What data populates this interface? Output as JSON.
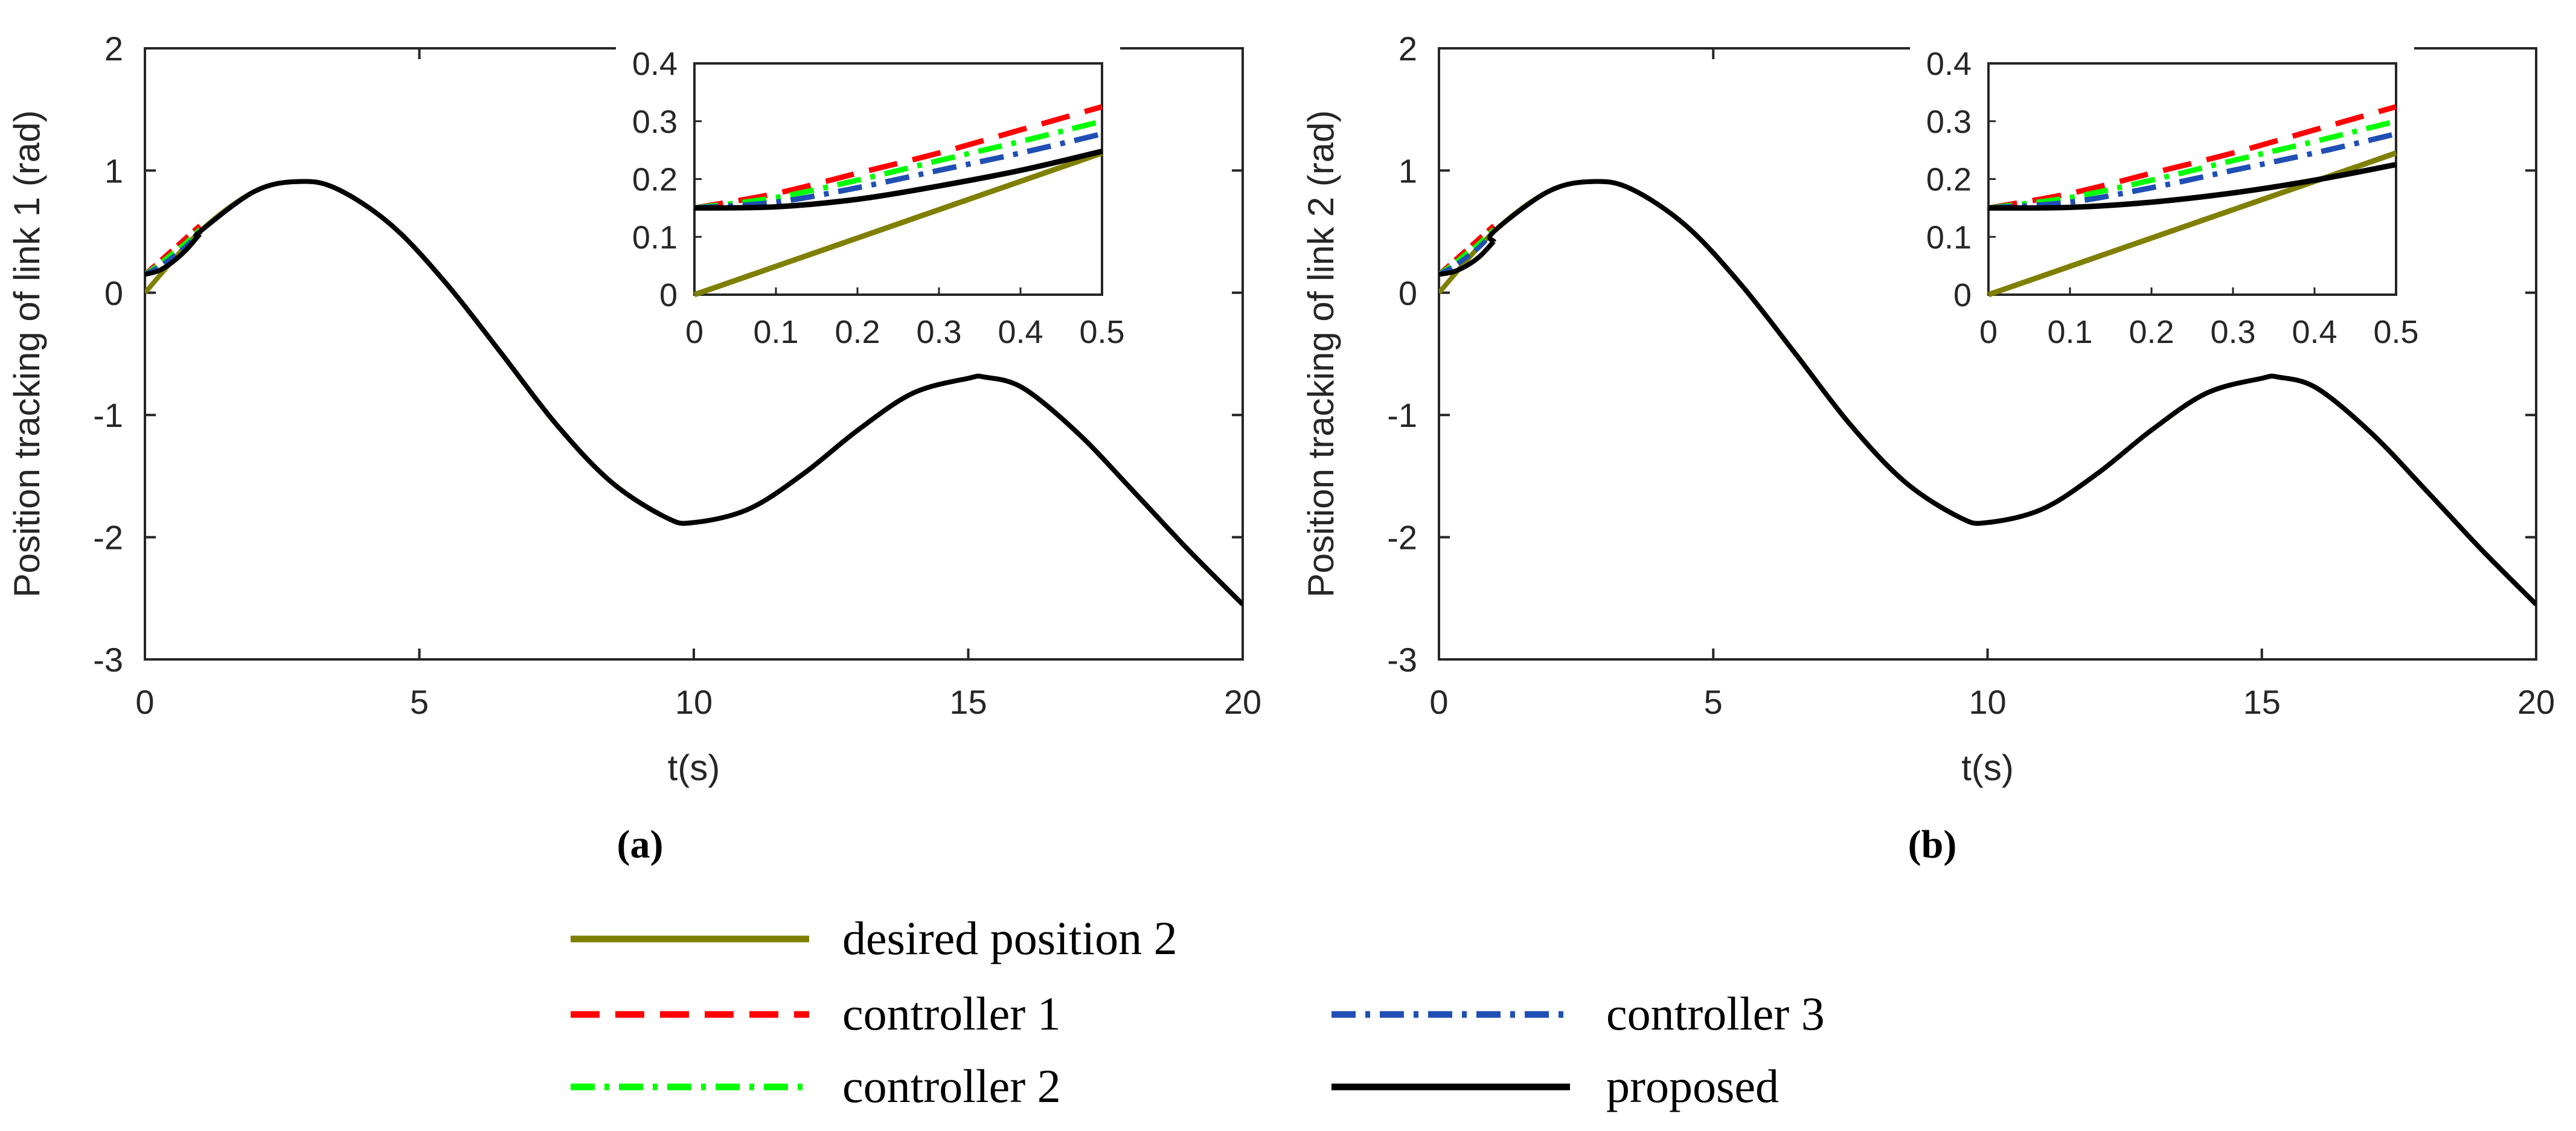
{
  "chart_data": [
    {
      "type": "line",
      "caption": "(a)",
      "xlabel": "t(s)",
      "ylabel": "Position tracking of link 1 (rad)",
      "xlim": [
        0,
        20
      ],
      "ylim": [
        -3,
        2
      ],
      "xticks": [
        "0",
        "5",
        "10",
        "15",
        "20"
      ],
      "yticks": [
        "-3",
        "-2",
        "-1",
        "0",
        "1",
        "2"
      ],
      "desired_trajectory": {
        "x": [
          0,
          1,
          2,
          2.8,
          3.5,
          4.5,
          5.5,
          6.5,
          7.5,
          8.5,
          9.5,
          10,
          11,
          12,
          13,
          14,
          15,
          15.3,
          16,
          17,
          18,
          19,
          20
        ],
        "y": [
          0,
          0.5,
          0.83,
          0.91,
          0.85,
          0.55,
          0.07,
          -0.5,
          -1.08,
          -1.55,
          -1.84,
          -1.88,
          -1.77,
          -1.48,
          -1.12,
          -0.82,
          -0.7,
          -0.69,
          -0.78,
          -1.15,
          -1.62,
          -2.1,
          -2.55
        ]
      },
      "initial_transient": {
        "x": [
          0,
          0.25,
          0.5,
          0.75,
          1.0
        ],
        "controller 1": [
          0.15,
          0.25,
          0.35,
          0.45,
          0.55
        ],
        "controller 2": [
          0.15,
          0.23,
          0.32,
          0.41,
          0.52
        ],
        "controller 3": [
          0.15,
          0.21,
          0.29,
          0.38,
          0.5
        ],
        "proposed": [
          0.15,
          0.18,
          0.25,
          0.35,
          0.48
        ]
      },
      "inset": {
        "xlim": [
          0,
          0.5
        ],
        "ylim": [
          0,
          0.4
        ],
        "xticks": [
          "0",
          "0.1",
          "0.2",
          "0.3",
          "0.4",
          "0.5"
        ],
        "yticks": [
          "0",
          "0.1",
          "0.2",
          "0.3",
          "0.4"
        ],
        "series": [
          {
            "name": "desired position 2",
            "x": [
              0,
              0.5
            ],
            "y": [
              0,
              0.245
            ]
          },
          {
            "name": "controller 1",
            "x": [
              0,
              0.1,
              0.2,
              0.3,
              0.4,
              0.5
            ],
            "y": [
              0.15,
              0.175,
              0.21,
              0.245,
              0.285,
              0.325
            ]
          },
          {
            "name": "controller 2",
            "x": [
              0,
              0.1,
              0.2,
              0.3,
              0.4,
              0.5
            ],
            "y": [
              0.15,
              0.168,
              0.198,
              0.232,
              0.265,
              0.3
            ]
          },
          {
            "name": "controller 3",
            "x": [
              0,
              0.1,
              0.2,
              0.3,
              0.4,
              0.5
            ],
            "y": [
              0.15,
              0.16,
              0.185,
              0.215,
              0.245,
              0.278
            ]
          },
          {
            "name": "proposed",
            "x": [
              0,
              0.1,
              0.2,
              0.3,
              0.4,
              0.5
            ],
            "y": [
              0.15,
              0.152,
              0.165,
              0.188,
              0.215,
              0.248
            ]
          }
        ]
      }
    },
    {
      "type": "line",
      "caption": "(b)",
      "xlabel": "t(s)",
      "ylabel": "Position tracking of link 2 (rad)",
      "xlim": [
        0,
        20
      ],
      "ylim": [
        -3,
        2
      ],
      "xticks": [
        "0",
        "5",
        "10",
        "15",
        "20"
      ],
      "yticks": [
        "-3",
        "-2",
        "-1",
        "0",
        "1",
        "2"
      ],
      "desired_trajectory": {
        "x": [
          0,
          1,
          2,
          2.8,
          3.5,
          4.5,
          5.5,
          6.5,
          7.5,
          8.5,
          9.5,
          10,
          11,
          12,
          13,
          14,
          15,
          15.3,
          16,
          17,
          18,
          19,
          20
        ],
        "y": [
          0,
          0.5,
          0.83,
          0.91,
          0.85,
          0.55,
          0.07,
          -0.5,
          -1.08,
          -1.55,
          -1.84,
          -1.88,
          -1.77,
          -1.48,
          -1.12,
          -0.82,
          -0.7,
          -0.69,
          -0.78,
          -1.15,
          -1.62,
          -2.1,
          -2.55
        ]
      },
      "initial_transient": {
        "x": [
          0,
          0.25,
          0.5,
          0.75,
          1.0
        ],
        "controller 1": [
          0.15,
          0.25,
          0.35,
          0.45,
          0.55
        ],
        "controller 2": [
          0.15,
          0.23,
          0.32,
          0.41,
          0.52
        ],
        "controller 3": [
          0.15,
          0.21,
          0.29,
          0.38,
          0.5
        ],
        "proposed": [
          0.15,
          0.17,
          0.22,
          0.3,
          0.42
        ]
      },
      "inset": {
        "xlim": [
          0,
          0.5
        ],
        "ylim": [
          0,
          0.4
        ],
        "xticks": [
          "0",
          "0.1",
          "0.2",
          "0.3",
          "0.4",
          "0.5"
        ],
        "yticks": [
          "0",
          "0.1",
          "0.2",
          "0.3",
          "0.4"
        ],
        "series": [
          {
            "name": "desired position 2",
            "x": [
              0,
              0.5
            ],
            "y": [
              0,
              0.245
            ]
          },
          {
            "name": "controller 1",
            "x": [
              0,
              0.1,
              0.2,
              0.3,
              0.4,
              0.5
            ],
            "y": [
              0.15,
              0.175,
              0.21,
              0.245,
              0.285,
              0.325
            ]
          },
          {
            "name": "controller 2",
            "x": [
              0,
              0.1,
              0.2,
              0.3,
              0.4,
              0.5
            ],
            "y": [
              0.15,
              0.168,
              0.198,
              0.232,
              0.265,
              0.3
            ]
          },
          {
            "name": "controller 3",
            "x": [
              0,
              0.1,
              0.2,
              0.3,
              0.4,
              0.5
            ],
            "y": [
              0.15,
              0.16,
              0.185,
              0.215,
              0.245,
              0.278
            ]
          },
          {
            "name": "proposed",
            "x": [
              0,
              0.1,
              0.2,
              0.3,
              0.4,
              0.5
            ],
            "y": [
              0.15,
              0.151,
              0.16,
              0.176,
              0.198,
              0.225
            ]
          }
        ]
      }
    }
  ],
  "legend": {
    "items": [
      {
        "name": "desired position 2",
        "color": "#7f7f00",
        "style": "solid"
      },
      {
        "name": "controller 1",
        "color": "#ff0000",
        "style": "dashed"
      },
      {
        "name": "controller 2",
        "color": "#00ff00",
        "style": "dashdot"
      },
      {
        "name": "controller 3",
        "color": "#1f4fb4",
        "style": "dashdot"
      },
      {
        "name": "proposed",
        "color": "#000000",
        "style": "solid"
      }
    ]
  }
}
